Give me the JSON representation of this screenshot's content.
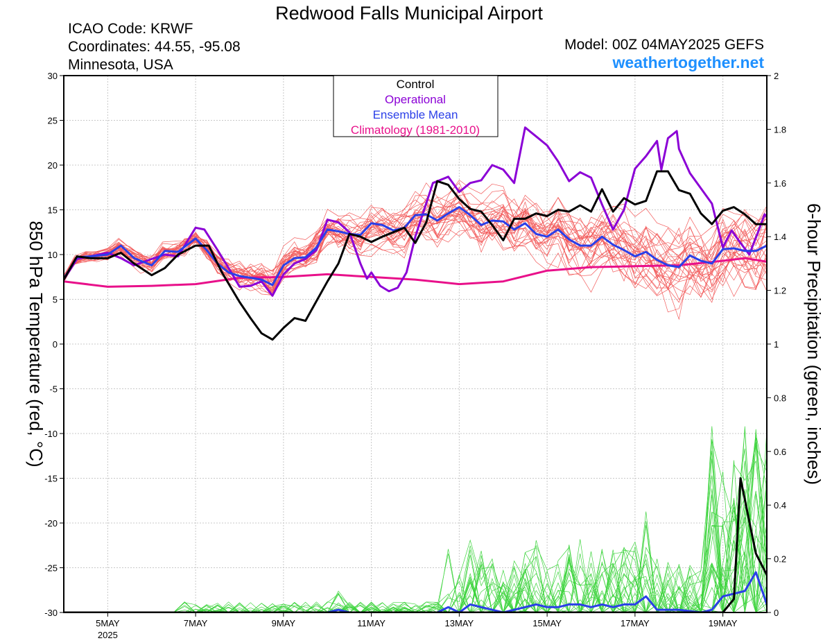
{
  "header": {
    "title": "Redwood Falls Municipal Airport",
    "icao": "ICAO Code: KRWF",
    "coords": "Coordinates: 44.55, -95.08",
    "region": "Minnesota, USA",
    "model": "Model: 00Z 04MAY2025 GEFS",
    "site": "weathertogether.net"
  },
  "legend": {
    "items": [
      {
        "label": "Control",
        "color": "#000000"
      },
      {
        "label": "Operational",
        "color": "#8b00d6"
      },
      {
        "label": "Ensemble Mean",
        "color": "#2a3fe8"
      },
      {
        "label": "Climatology (1981-2010)",
        "color": "#e8108a"
      }
    ]
  },
  "colors": {
    "ensemble_temp": "#f25a5a",
    "ensemble_precip": "#3ed43e",
    "control": "#000000",
    "operational": "#8b00d6",
    "mean": "#2a3fe8",
    "climatology": "#e8108a"
  },
  "chart_data": {
    "type": "line",
    "title": "Redwood Falls Municipal Airport",
    "ylabel": "850 hPa Temperature (red, °C)",
    "y2label": "6-hour Precipitation (green, inches)",
    "ylim": [
      -30,
      30
    ],
    "y2lim": [
      0,
      2
    ],
    "xlim_days": [
      4.0,
      20.0
    ],
    "x_ticks": [
      {
        "day": 5,
        "label": "5MAY",
        "sub": "2025"
      },
      {
        "day": 7,
        "label": "7MAY",
        "sub": ""
      },
      {
        "day": 9,
        "label": "9MAY",
        "sub": ""
      },
      {
        "day": 11,
        "label": "11MAY",
        "sub": ""
      },
      {
        "day": 13,
        "label": "13MAY",
        "sub": ""
      },
      {
        "day": 15,
        "label": "15MAY",
        "sub": ""
      },
      {
        "day": 17,
        "label": "17MAY",
        "sub": ""
      },
      {
        "day": 19,
        "label": "19MAY",
        "sub": ""
      }
    ],
    "y_ticks": [
      "30",
      "25",
      "20",
      "15",
      "10",
      "5",
      "0",
      "-5",
      "-10",
      "-15",
      "-20",
      "-25",
      "-30"
    ],
    "y2_ticks": [
      "2",
      "1.8",
      "1.6",
      "1.4",
      "1.2",
      "1",
      "0.8",
      "0.6",
      "0.4",
      "0.2",
      "0"
    ],
    "grid": true,
    "legend_position": "top-center",
    "operational_temp": [
      [
        4.0,
        7.2
      ],
      [
        4.3,
        9.5
      ],
      [
        4.6,
        9.8
      ],
      [
        5.0,
        10.2
      ],
      [
        5.3,
        9.6
      ],
      [
        5.6,
        8.8
      ],
      [
        6.0,
        9.5
      ],
      [
        6.3,
        10.0
      ],
      [
        6.6,
        9.8
      ],
      [
        7.0,
        13.0
      ],
      [
        7.2,
        12.8
      ],
      [
        7.5,
        10.5
      ],
      [
        7.75,
        8.5
      ],
      [
        8.0,
        6.4
      ],
      [
        8.25,
        6.5
      ],
      [
        8.5,
        7.0
      ],
      [
        8.75,
        5.4
      ],
      [
        9.0,
        7.8
      ],
      [
        9.25,
        9.0
      ],
      [
        9.5,
        9.5
      ],
      [
        9.75,
        10.5
      ],
      [
        10.0,
        13.9
      ],
      [
        10.25,
        13.6
      ],
      [
        10.5,
        12.5
      ],
      [
        10.75,
        9.0
      ],
      [
        10.9,
        7.3
      ],
      [
        11.0,
        8.0
      ],
      [
        11.2,
        6.5
      ],
      [
        11.4,
        5.9
      ],
      [
        11.6,
        6.3
      ],
      [
        11.8,
        8.0
      ],
      [
        12.0,
        12.0
      ],
      [
        12.2,
        15.0
      ],
      [
        12.4,
        18.0
      ],
      [
        12.75,
        18.7
      ],
      [
        13.0,
        17.0
      ],
      [
        13.25,
        18.0
      ],
      [
        13.5,
        18.3
      ],
      [
        13.75,
        20.0
      ],
      [
        14.0,
        19.5
      ],
      [
        14.25,
        18.0
      ],
      [
        14.5,
        24.2
      ],
      [
        14.75,
        23.2
      ],
      [
        15.0,
        22.2
      ],
      [
        15.25,
        20.4
      ],
      [
        15.5,
        18.2
      ],
      [
        15.75,
        19.2
      ],
      [
        16.0,
        18.6
      ],
      [
        16.25,
        15.6
      ],
      [
        16.5,
        12.8
      ],
      [
        16.75,
        15.0
      ],
      [
        17.0,
        19.6
      ],
      [
        17.25,
        21.0
      ],
      [
        17.5,
        22.7
      ],
      [
        17.6,
        19.5
      ],
      [
        17.75,
        23.0
      ],
      [
        17.95,
        23.8
      ],
      [
        18.0,
        21.8
      ],
      [
        18.25,
        19.1
      ],
      [
        18.5,
        17.4
      ],
      [
        18.75,
        15.7
      ],
      [
        19.0,
        10.8
      ],
      [
        19.2,
        12.7
      ],
      [
        19.4,
        11.3
      ],
      [
        19.6,
        10.0
      ],
      [
        19.8,
        12.5
      ],
      [
        19.95,
        14.5
      ],
      [
        20.0,
        14.2
      ],
      [
        20.2,
        11.3
      ],
      [
        20.4,
        15.0
      ],
      [
        20.6,
        15.9
      ],
      [
        20.8,
        15.0
      ],
      [
        21.0,
        15.2
      ],
      [
        21.2,
        15.6
      ],
      [
        21.3,
        14.7
      ]
    ],
    "control_temp": [
      [
        4.0,
        7.2
      ],
      [
        4.3,
        9.8
      ],
      [
        4.6,
        9.6
      ],
      [
        5.0,
        9.6
      ],
      [
        5.3,
        10.2
      ],
      [
        5.6,
        9.0
      ],
      [
        6.0,
        7.7
      ],
      [
        6.3,
        8.5
      ],
      [
        6.6,
        10.0
      ],
      [
        7.0,
        11.0
      ],
      [
        7.3,
        11.0
      ],
      [
        7.6,
        8.0
      ],
      [
        8.0,
        4.7
      ],
      [
        8.25,
        2.9
      ],
      [
        8.5,
        1.2
      ],
      [
        8.75,
        0.5
      ],
      [
        9.0,
        1.8
      ],
      [
        9.25,
        2.9
      ],
      [
        9.5,
        2.6
      ],
      [
        9.75,
        4.8
      ],
      [
        10.0,
        7.0
      ],
      [
        10.25,
        9.0
      ],
      [
        10.5,
        12.3
      ],
      [
        10.75,
        12.0
      ],
      [
        11.0,
        11.4
      ],
      [
        11.25,
        12.0
      ],
      [
        11.5,
        12.5
      ],
      [
        11.75,
        13.0
      ],
      [
        12.0,
        11.3
      ],
      [
        12.25,
        13.6
      ],
      [
        12.5,
        18.2
      ],
      [
        12.75,
        17.8
      ],
      [
        13.0,
        16.2
      ],
      [
        13.25,
        15.1
      ],
      [
        13.5,
        14.8
      ],
      [
        13.75,
        13.3
      ],
      [
        14.0,
        11.6
      ],
      [
        14.25,
        14.0
      ],
      [
        14.5,
        14.0
      ],
      [
        14.75,
        14.6
      ],
      [
        15.0,
        14.3
      ],
      [
        15.25,
        15.0
      ],
      [
        15.5,
        14.8
      ],
      [
        15.75,
        15.5
      ],
      [
        16.0,
        14.8
      ],
      [
        16.25,
        17.3
      ],
      [
        16.5,
        14.8
      ],
      [
        16.75,
        16.3
      ],
      [
        17.0,
        15.6
      ],
      [
        17.25,
        16.0
      ],
      [
        17.5,
        19.3
      ],
      [
        17.75,
        19.3
      ],
      [
        18.0,
        17.2
      ],
      [
        18.25,
        16.8
      ],
      [
        18.5,
        14.6
      ],
      [
        18.75,
        13.4
      ],
      [
        19.0,
        14.9
      ],
      [
        19.25,
        15.3
      ],
      [
        19.5,
        14.5
      ],
      [
        19.75,
        13.4
      ],
      [
        20.0,
        13.4
      ],
      [
        20.2,
        14.2
      ]
    ],
    "mean_temp": [
      [
        4.0,
        7.3
      ],
      [
        4.3,
        9.7
      ],
      [
        4.6,
        9.8
      ],
      [
        5.0,
        10.0
      ],
      [
        5.3,
        11.0
      ],
      [
        5.6,
        9.6
      ],
      [
        6.0,
        8.8
      ],
      [
        6.3,
        10.4
      ],
      [
        6.6,
        10.3
      ],
      [
        7.0,
        11.8
      ],
      [
        7.25,
        10.5
      ],
      [
        7.5,
        9.0
      ],
      [
        7.75,
        8.0
      ],
      [
        8.0,
        7.6
      ],
      [
        8.25,
        7.4
      ],
      [
        8.5,
        7.2
      ],
      [
        8.75,
        6.6
      ],
      [
        9.0,
        8.8
      ],
      [
        9.25,
        9.6
      ],
      [
        9.5,
        9.7
      ],
      [
        9.75,
        10.8
      ],
      [
        10.0,
        12.8
      ],
      [
        10.25,
        12.6
      ],
      [
        10.5,
        12.3
      ],
      [
        10.75,
        12.2
      ],
      [
        11.0,
        13.5
      ],
      [
        11.25,
        13.3
      ],
      [
        11.5,
        12.7
      ],
      [
        11.75,
        13.0
      ],
      [
        12.0,
        14.4
      ],
      [
        12.25,
        14.5
      ],
      [
        12.5,
        13.8
      ],
      [
        12.75,
        14.6
      ],
      [
        13.0,
        15.3
      ],
      [
        13.25,
        14.4
      ],
      [
        13.5,
        13.3
      ],
      [
        13.75,
        13.8
      ],
      [
        14.0,
        13.7
      ],
      [
        14.25,
        12.8
      ],
      [
        14.5,
        13.5
      ],
      [
        14.75,
        12.3
      ],
      [
        15.0,
        12.0
      ],
      [
        15.25,
        12.8
      ],
      [
        15.5,
        11.7
      ],
      [
        15.75,
        11.0
      ],
      [
        16.0,
        11.0
      ],
      [
        16.25,
        12.0
      ],
      [
        16.5,
        11.1
      ],
      [
        16.75,
        10.5
      ],
      [
        17.0,
        9.8
      ],
      [
        17.25,
        10.3
      ],
      [
        17.5,
        9.4
      ],
      [
        17.75,
        8.8
      ],
      [
        18.0,
        8.6
      ],
      [
        18.25,
        9.9
      ],
      [
        18.5,
        9.3
      ],
      [
        18.75,
        9.0
      ],
      [
        19.0,
        10.6
      ],
      [
        19.25,
        10.7
      ],
      [
        19.5,
        10.4
      ],
      [
        19.75,
        10.4
      ],
      [
        20.0,
        11.0
      ]
    ],
    "climatology_temp": [
      [
        4.0,
        7.0
      ],
      [
        5.0,
        6.4
      ],
      [
        6.0,
        6.5
      ],
      [
        7.0,
        6.7
      ],
      [
        8.0,
        7.4
      ],
      [
        9.0,
        7.5
      ],
      [
        10.0,
        7.8
      ],
      [
        11.0,
        7.5
      ],
      [
        12.0,
        7.2
      ],
      [
        13.0,
        6.7
      ],
      [
        14.0,
        7.0
      ],
      [
        15.0,
        8.2
      ],
      [
        16.0,
        8.6
      ],
      [
        17.0,
        8.7
      ],
      [
        18.0,
        8.8
      ],
      [
        19.0,
        9.3
      ],
      [
        19.5,
        9.6
      ],
      [
        20.0,
        9.2
      ],
      [
        20.5,
        9.0
      ]
    ],
    "control_precip": [
      [
        4.0,
        0.0
      ],
      [
        18.75,
        0.0
      ],
      [
        19.0,
        0.0
      ],
      [
        19.25,
        0.05
      ],
      [
        19.4,
        0.5
      ],
      [
        19.75,
        0.22
      ],
      [
        20.0,
        0.14
      ],
      [
        20.2,
        0.1
      ]
    ],
    "mean_precip": [
      [
        4.0,
        0.0
      ],
      [
        10.0,
        0.0
      ],
      [
        10.25,
        0.01
      ],
      [
        10.5,
        0.0
      ],
      [
        12.5,
        0.0
      ],
      [
        12.75,
        0.02
      ],
      [
        13.0,
        0.0
      ],
      [
        13.25,
        0.03
      ],
      [
        13.5,
        0.02
      ],
      [
        13.75,
        0.01
      ],
      [
        14.0,
        0.0
      ],
      [
        14.5,
        0.02
      ],
      [
        14.75,
        0.03
      ],
      [
        15.0,
        0.02
      ],
      [
        15.25,
        0.02
      ],
      [
        15.5,
        0.03
      ],
      [
        15.75,
        0.03
      ],
      [
        16.0,
        0.02
      ],
      [
        16.25,
        0.03
      ],
      [
        16.5,
        0.02
      ],
      [
        16.75,
        0.03
      ],
      [
        17.0,
        0.03
      ],
      [
        17.25,
        0.06
      ],
      [
        17.5,
        0.01
      ],
      [
        17.75,
        0.01
      ],
      [
        18.0,
        0.01
      ],
      [
        18.5,
        0.0
      ],
      [
        18.75,
        0.01
      ],
      [
        19.0,
        0.06
      ],
      [
        19.25,
        0.07
      ],
      [
        19.5,
        0.08
      ],
      [
        19.75,
        0.15
      ],
      [
        20.0,
        0.03
      ],
      [
        20.2,
        0.07
      ]
    ]
  }
}
